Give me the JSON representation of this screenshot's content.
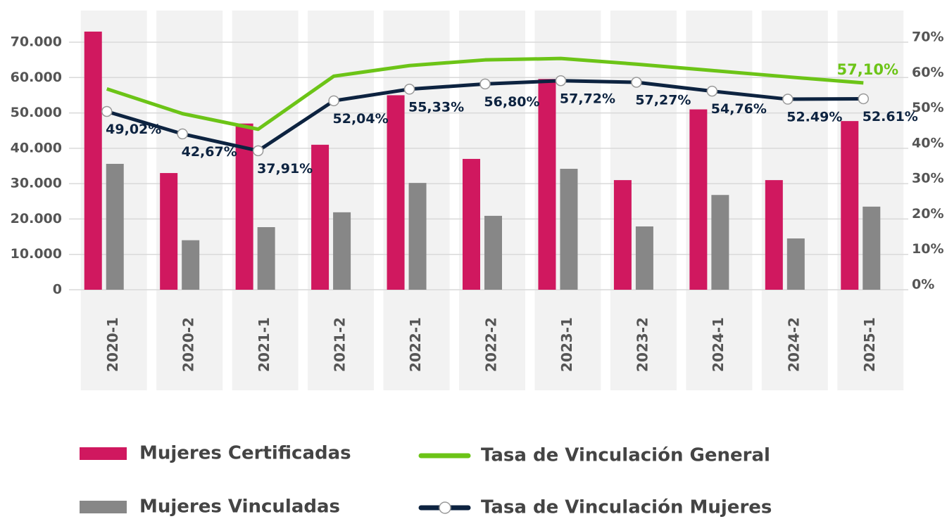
{
  "chart_data": {
    "type": "bar-line",
    "categories": [
      "2020-1",
      "2020-2",
      "2021-1",
      "2021-2",
      "2022-1",
      "2022-2",
      "2023-1",
      "2023-2",
      "2024-1",
      "2024-2",
      "2025-1"
    ],
    "series": [
      {
        "name": "Mujeres Certificadas",
        "color": "#d0185f",
        "kind": "bar",
        "values": [
          73000,
          33000,
          47000,
          41000,
          55000,
          37000,
          59600,
          31000,
          51000,
          31000,
          47700
        ]
      },
      {
        "name": "Mujeres Vinculadas",
        "color": "#878787",
        "kind": "bar",
        "values": [
          35600,
          14000,
          17700,
          21900,
          30200,
          20900,
          34200,
          17900,
          26800,
          14500,
          23500
        ]
      },
      {
        "name": "Tasa de Vinculación General",
        "color": "#6cc417",
        "kind": "line",
        "axis": "y2",
        "values": [
          55.4,
          48.4,
          44,
          59,
          62,
          63.6,
          64,
          62.4,
          60.6,
          58.8,
          57.1
        ],
        "value_labels": [
          null,
          null,
          null,
          null,
          null,
          null,
          null,
          null,
          null,
          null,
          "57,10%"
        ]
      },
      {
        "name": "Tasa de Vinculación Mujeres",
        "color": "#0d2340",
        "kind": "line",
        "axis": "y2",
        "marker": true,
        "values": [
          49.02,
          42.67,
          37.91,
          52.04,
          55.33,
          56.8,
          57.72,
          57.27,
          54.76,
          52.49,
          52.61
        ],
        "value_labels": [
          "49,02%",
          "42,67%",
          "37,91%",
          "52,04%",
          "55,33%",
          "56,80%",
          "57,72%",
          "57,27%",
          "54,76%",
          "52.49%",
          "52.61%"
        ]
      }
    ],
    "ylim": [
      0,
      70000
    ],
    "yticks": [
      0,
      {
        "value": 10000,
        "label": "10.000"
      },
      {
        "value": 20000,
        "label": "20.000"
      },
      {
        "value": 30000,
        "label": "30.000"
      },
      {
        "value": 40000,
        "label": "40.000"
      },
      {
        "value": 50000,
        "label": "50.000"
      },
      {
        "value": 60000,
        "label": "60.000"
      },
      {
        "value": 70000,
        "label": "70.000"
      }
    ],
    "y2lim": [
      0,
      70
    ],
    "y2ticks": [
      {
        "value": 0,
        "label": "0%"
      },
      {
        "value": 10,
        "label": "10%"
      },
      {
        "value": 20,
        "label": "20%"
      },
      {
        "value": 30,
        "label": "30%"
      },
      {
        "value": 40,
        "label": "40%"
      },
      {
        "value": 50,
        "label": "50%"
      },
      {
        "value": 60,
        "label": "60%"
      },
      {
        "value": 70,
        "label": "70%"
      }
    ],
    "grid": true,
    "legend": "bottom"
  }
}
